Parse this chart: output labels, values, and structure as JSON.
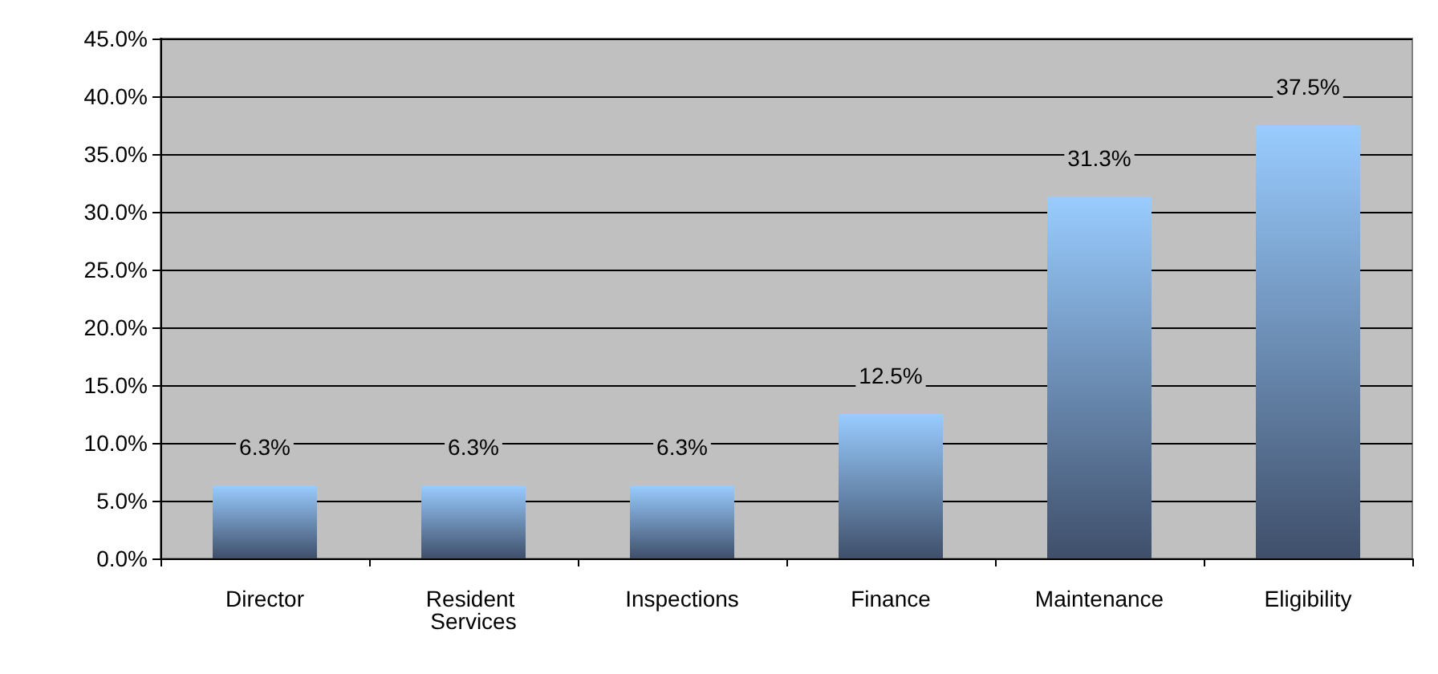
{
  "chart_data": {
    "type": "bar",
    "categories": [
      "Director",
      "Resident Services",
      "Inspections",
      "Finance",
      "Maintenance",
      "Eligibility"
    ],
    "values": [
      6.3,
      6.3,
      6.3,
      12.5,
      31.3,
      37.5
    ],
    "value_labels": [
      "6.3%",
      "6.3%",
      "6.3%",
      "12.5%",
      "31.3%",
      "37.5%"
    ],
    "color": "#99ccff",
    "ylim": [
      0,
      45
    ],
    "yticks": [
      {
        "value": 0,
        "label": "0.0%"
      },
      {
        "value": 5,
        "label": "5.0%"
      },
      {
        "value": 10,
        "label": "10.0%"
      },
      {
        "value": 15,
        "label": "15.0%"
      },
      {
        "value": 20,
        "label": "20.0%"
      },
      {
        "value": 25,
        "label": "25.0%"
      },
      {
        "value": 30,
        "label": "30.0%"
      },
      {
        "value": 35,
        "label": "35.0%"
      },
      {
        "value": 40,
        "label": "40.0%"
      },
      {
        "value": 45,
        "label": "45.0%"
      }
    ],
    "grid": "y"
  }
}
